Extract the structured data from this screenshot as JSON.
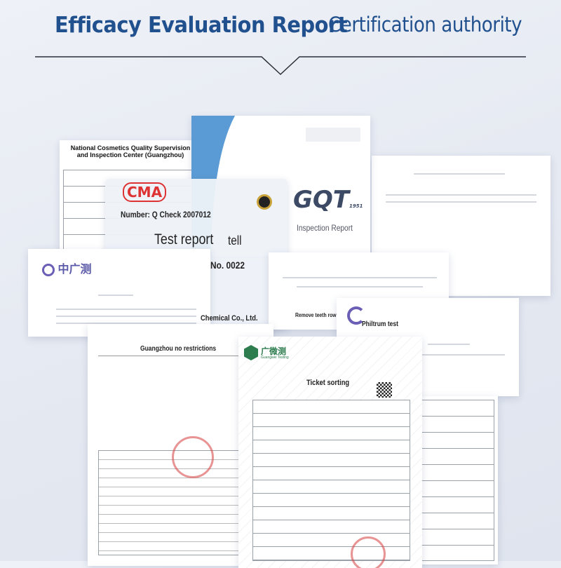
{
  "header": {
    "title": "Efficacy Evaluation Report",
    "subtitle": "Certification authority"
  },
  "documents": {
    "national": {
      "heading": "National Cosmetics Quality Supervision and Inspection Center (Guangzhou)"
    },
    "gqt": {
      "logo": "GQT",
      "logo_year": "1951",
      "caption": "Inspection Report"
    },
    "test_report": {
      "mark": "CMA",
      "number": "Number: Q Check 2007012",
      "title": "Test report",
      "title_suffix": "tell",
      "no": "No. 0022",
      "company": "Chemical Co., Ltd."
    },
    "zgc": {
      "logo": "中广测"
    },
    "teeth": {
      "label": "Remove teeth row"
    },
    "philtrum": {
      "label": "Philtrum test"
    },
    "guangzhou": {
      "label": "Guangzhou no restrictions"
    },
    "gt": {
      "logo": "广微测",
      "logo_sub": "Guangwei Testing",
      "label": "Ticket sorting"
    }
  },
  "colors": {
    "title": "#21508e",
    "accent_blue": "#5b9bd5",
    "stamp_red": "#d73c3c"
  }
}
